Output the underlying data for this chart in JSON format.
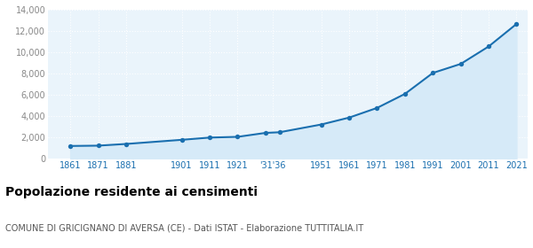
{
  "years": [
    1861,
    1871,
    1881,
    1901,
    1911,
    1921,
    1931,
    1936,
    1951,
    1961,
    1971,
    1981,
    1991,
    2001,
    2011,
    2021
  ],
  "population": [
    1200,
    1230,
    1390,
    1780,
    1990,
    2060,
    2430,
    2490,
    3220,
    3870,
    4780,
    6100,
    8070,
    8920,
    10560,
    12680
  ],
  "line_color": "#1a6faf",
  "fill_color": "#d6eaf8",
  "marker_color": "#1a6faf",
  "background_color": "#eaf4fb",
  "grid_color": "#ffffff",
  "ytick_color": "#888888",
  "xtick_color": "#1a6faf",
  "title": "Popolazione residente ai censimenti",
  "subtitle": "COMUNE DI GRICIGNANO DI AVERSA (CE) - Dati ISTAT - Elaborazione TUTTITALIA.IT",
  "ylim": [
    0,
    14000
  ],
  "yticks": [
    0,
    2000,
    4000,
    6000,
    8000,
    10000,
    12000,
    14000
  ],
  "xtick_pos": [
    1861,
    1871,
    1881,
    1901,
    1911,
    1921,
    1933.5,
    1951,
    1961,
    1971,
    1981,
    1991,
    2001,
    2011,
    2021
  ],
  "xtick_labels": [
    "1861",
    "1871",
    "1881",
    "1901",
    "1911",
    "1921",
    "'31'36",
    "1951",
    "1961",
    "1971",
    "1981",
    "1991",
    "2001",
    "2011",
    "2021"
  ],
  "xlim": [
    1853,
    2025
  ],
  "title_fontsize": 10,
  "subtitle_fontsize": 7,
  "tick_fontsize": 7
}
